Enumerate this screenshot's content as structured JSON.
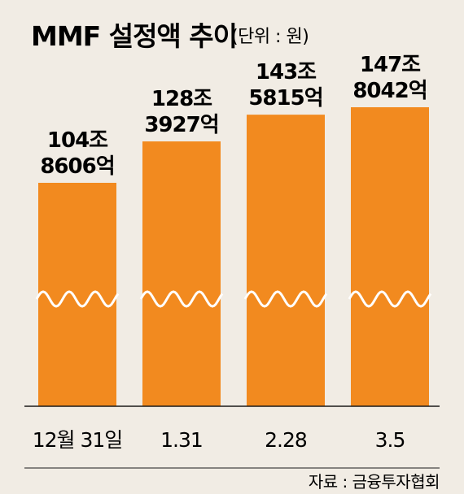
{
  "chart_data": {
    "type": "bar",
    "title": "MMF 설정액 추이",
    "unit": "(단위 : 원)",
    "categories": [
      "12월 31일",
      "1.31",
      "2.28",
      "3.5"
    ],
    "values": [
      104.8606,
      128.3927,
      143.5815,
      147.8042
    ],
    "value_labels": [
      [
        "104조",
        "8606억"
      ],
      [
        "128조",
        "3927억"
      ],
      [
        "143조",
        "5815억"
      ],
      [
        "147조",
        "8042억"
      ]
    ],
    "axis_break": true,
    "grid": false,
    "source": "자료 : 금융투자협회",
    "colors": {
      "bar": "#f28a1f",
      "background": "#f1ece4",
      "text": "#1a1a1a",
      "break_line": "#ffffff"
    }
  }
}
